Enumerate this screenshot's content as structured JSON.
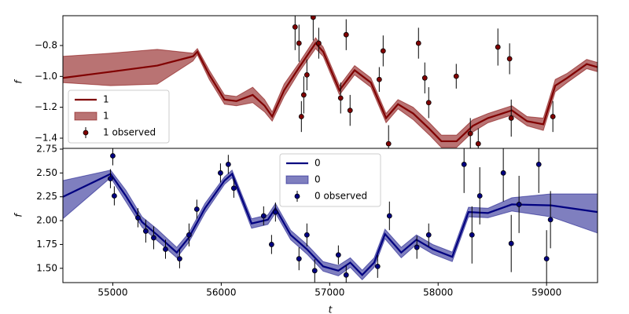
{
  "chart_data": [
    {
      "type": "line",
      "ylabel": "f",
      "legend": "lower left",
      "xlim": [
        54540,
        59470
      ],
      "ylim": [
        -1.466,
        -0.607
      ],
      "yticks": [
        {
          "value": -0.8,
          "label": "−0.8"
        },
        {
          "value": -1.0,
          "label": "−1.0"
        },
        {
          "value": -1.2,
          "label": "−1.2"
        },
        {
          "value": -1.4,
          "label": "−1.4"
        }
      ],
      "series": [
        {
          "name": "1",
          "kind": "line",
          "color": "#800000",
          "x": [
            54540,
            54980,
            55410,
            55740,
            55780,
            55890,
            56030,
            56140,
            56290,
            56400,
            56470,
            56580,
            56720,
            56870,
            56940,
            57090,
            57230,
            57380,
            57520,
            57630,
            57770,
            57920,
            58030,
            58170,
            58320,
            58460,
            58680,
            58820,
            58970,
            59080,
            59190,
            59370,
            59470
          ],
          "values": [
            -1.01,
            -0.97,
            -0.93,
            -0.87,
            -0.84,
            -0.99,
            -1.15,
            -1.16,
            -1.12,
            -1.19,
            -1.26,
            -1.09,
            -0.94,
            -0.785,
            -0.84,
            -1.09,
            -0.96,
            -1.04,
            -1.27,
            -1.18,
            -1.24,
            -1.34,
            -1.42,
            -1.42,
            -1.32,
            -1.27,
            -1.22,
            -1.29,
            -1.31,
            -1.06,
            -1.01,
            -0.92,
            -0.94
          ]
        },
        {
          "name": "1",
          "kind": "band",
          "color": "#800000",
          "alpha": 0.55,
          "x": [
            54540,
            54980,
            55410,
            55740,
            55780,
            55890,
            56030,
            56140,
            56290,
            56400,
            56470,
            56580,
            56720,
            56870,
            56940,
            57090,
            57230,
            57380,
            57520,
            57630,
            57770,
            57920,
            58030,
            58170,
            58320,
            58460,
            58680,
            58820,
            58970,
            59080,
            59190,
            59370,
            59470
          ],
          "lower": [
            -1.04,
            -1.06,
            -1.05,
            -0.9,
            -0.86,
            -1.02,
            -1.18,
            -1.19,
            -1.17,
            -1.23,
            -1.29,
            -1.13,
            -0.97,
            -0.82,
            -0.87,
            -1.12,
            -0.99,
            -1.07,
            -1.3,
            -1.21,
            -1.28,
            -1.38,
            -1.46,
            -1.46,
            -1.36,
            -1.3,
            -1.25,
            -1.32,
            -1.35,
            -1.1,
            -1.04,
            -0.95,
            -0.97
          ],
          "upper": [
            -0.87,
            -0.85,
            -0.825,
            -0.85,
            -0.82,
            -0.96,
            -1.12,
            -1.13,
            -1.07,
            -1.15,
            -1.23,
            -1.05,
            -0.91,
            -0.75,
            -0.81,
            -1.06,
            -0.93,
            -1.01,
            -1.24,
            -1.15,
            -1.2,
            -1.3,
            -1.38,
            -1.38,
            -1.28,
            -1.24,
            -1.19,
            -1.26,
            -1.27,
            -1.02,
            -0.98,
            -0.89,
            -0.91
          ]
        },
        {
          "name": "1 observed",
          "kind": "errorbar",
          "color": "#800000",
          "x": [
            56681,
            56717,
            56739,
            56761,
            56790,
            56848,
            56899,
            57101,
            57152,
            57188,
            57457,
            57493,
            57543,
            57819,
            57877,
            57913,
            58167,
            58297,
            58370,
            58551,
            58659,
            58674,
            59058
          ],
          "values": [
            -0.68,
            -0.785,
            -1.26,
            -1.12,
            -0.99,
            -0.617,
            -0.785,
            -1.14,
            -0.73,
            -1.22,
            -1.02,
            -0.835,
            -1.436,
            -0.785,
            -1.01,
            -1.17,
            -0.999,
            -1.37,
            -1.436,
            -0.81,
            -0.886,
            -1.27,
            -1.26
          ],
          "errors": [
            0.15,
            0.12,
            0.1,
            0.12,
            0.1,
            0.15,
            0.1,
            0.1,
            0.1,
            0.1,
            0.08,
            0.1,
            0.12,
            0.1,
            0.1,
            0.1,
            0.08,
            0.1,
            0.1,
            0.12,
            0.1,
            0.12,
            0.1
          ]
        }
      ]
    },
    {
      "type": "line",
      "ylabel": "f",
      "xlabel": "t",
      "legend": "upper center",
      "xlim": [
        54540,
        59470
      ],
      "ylim": [
        1.35,
        2.758
      ],
      "xticks": [
        55000,
        56000,
        57000,
        58000,
        59000
      ],
      "yticks": [
        2.75,
        {
          "value": 2.5,
          "label": "2.50"
        },
        2.25,
        {
          "value": 2.0,
          "label": "2.00"
        },
        1.75,
        {
          "value": 1.5,
          "label": "1.50"
        }
      ],
      "series": [
        {
          "name": "0",
          "kind": "line",
          "color": "#000080",
          "x": [
            54540,
            54980,
            55120,
            55270,
            55410,
            55590,
            55700,
            55850,
            56030,
            56100,
            56280,
            56430,
            56500,
            56640,
            56790,
            56940,
            57080,
            57190,
            57300,
            57410,
            57510,
            57660,
            57800,
            57950,
            58130,
            58280,
            58460,
            58680,
            59040,
            59470
          ],
          "values": [
            2.25,
            2.49,
            2.26,
            1.985,
            1.85,
            1.665,
            1.82,
            2.13,
            2.42,
            2.49,
            1.97,
            2.01,
            2.13,
            1.85,
            1.7,
            1.52,
            1.475,
            1.56,
            1.43,
            1.56,
            1.86,
            1.665,
            1.8,
            1.7,
            1.62,
            2.09,
            2.08,
            2.17,
            2.16,
            2.09
          ]
        },
        {
          "name": "0",
          "kind": "band",
          "color": "#000080",
          "alpha": 0.5,
          "x": [
            54540,
            54980,
            55120,
            55270,
            55410,
            55590,
            55700,
            55850,
            56030,
            56100,
            56280,
            56430,
            56500,
            56640,
            56790,
            56940,
            57080,
            57190,
            57300,
            57410,
            57510,
            57660,
            57800,
            57950,
            58130,
            58280,
            58460,
            58680,
            59040,
            59470
          ],
          "lower": [
            2.02,
            2.45,
            2.2,
            1.93,
            1.79,
            1.61,
            1.77,
            2.08,
            2.38,
            2.45,
            1.92,
            1.96,
            2.08,
            1.8,
            1.65,
            1.47,
            1.42,
            1.51,
            1.38,
            1.51,
            1.81,
            1.61,
            1.75,
            1.65,
            1.57,
            2.04,
            2.03,
            2.1,
            2.04,
            1.87
          ],
          "upper": [
            2.42,
            2.53,
            2.32,
            2.04,
            1.91,
            1.72,
            1.87,
            2.18,
            2.46,
            2.53,
            2.02,
            2.06,
            2.18,
            1.9,
            1.75,
            1.57,
            1.53,
            1.61,
            1.48,
            1.61,
            1.91,
            1.72,
            1.85,
            1.75,
            1.67,
            2.14,
            2.13,
            2.24,
            2.28,
            2.28
          ]
        },
        {
          "name": "0 observed",
          "kind": "errorbar",
          "color": "#000080",
          "x": [
            54978,
            55000,
            55014,
            55232,
            55304,
            55377,
            55486,
            55616,
            55703,
            55775,
            55993,
            56065,
            56116,
            56391,
            56464,
            56500,
            56717,
            56790,
            56862,
            57080,
            57152,
            57442,
            57551,
            57804,
            57913,
            58239,
            58312,
            58384,
            58601,
            58674,
            58746,
            58928,
            59000,
            59036
          ],
          "values": [
            2.44,
            2.68,
            2.26,
            2.03,
            1.89,
            1.82,
            1.7,
            1.6,
            1.85,
            2.12,
            2.5,
            2.59,
            2.34,
            2.05,
            1.75,
            2.09,
            1.6,
            1.85,
            1.475,
            1.64,
            1.43,
            1.52,
            2.05,
            1.72,
            1.85,
            2.59,
            1.85,
            2.26,
            2.5,
            1.76,
            2.17,
            2.59,
            1.6,
            2.01
          ],
          "errors": [
            0.1,
            0.1,
            0.1,
            0.1,
            0.12,
            0.12,
            0.1,
            0.1,
            0.12,
            0.1,
            0.1,
            0.1,
            0.1,
            0.1,
            0.1,
            0.1,
            0.12,
            0.12,
            0.12,
            0.1,
            0.1,
            0.12,
            0.15,
            0.12,
            0.12,
            0.3,
            0.3,
            0.3,
            0.3,
            0.3,
            0.3,
            0.3,
            0.3,
            0.3
          ]
        }
      ]
    }
  ]
}
